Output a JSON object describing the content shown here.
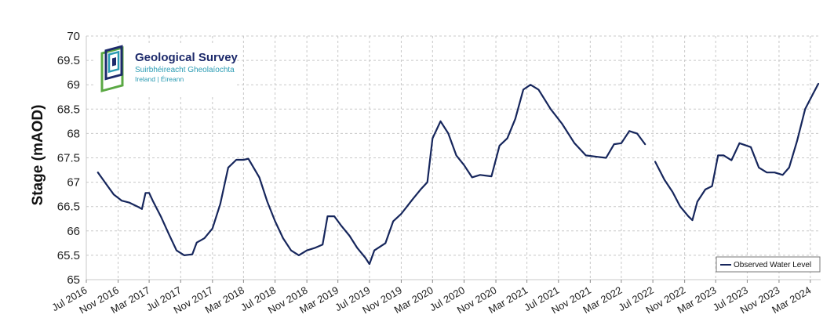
{
  "logo": {
    "title": "Geological Survey",
    "subtitle": "Suirbhéireacht Gheolaíochta",
    "subtitle2": "Ireland | Éireann",
    "colors": {
      "navy": "#1d2a6b",
      "teal": "#2a9bb3",
      "green": "#5aa843"
    }
  },
  "chart_data": {
    "type": "line",
    "title": "",
    "xlabel": "",
    "ylabel": "Stage (mAOD)",
    "ylim": [
      65,
      70
    ],
    "yticks": [
      "65",
      "65.5",
      "66",
      "66.5",
      "67",
      "67.5",
      "68",
      "68.5",
      "69",
      "69.5",
      "70"
    ],
    "xlim": [
      "2016-07-01",
      "2024-04-10"
    ],
    "xticks": [
      {
        "date": "2016-07-01",
        "label": "Jul 2016"
      },
      {
        "date": "2016-11-01",
        "label": "Nov 2016"
      },
      {
        "date": "2017-03-01",
        "label": "Mar 2017"
      },
      {
        "date": "2017-07-01",
        "label": "Jul 2017"
      },
      {
        "date": "2017-11-01",
        "label": "Nov 2017"
      },
      {
        "date": "2018-03-01",
        "label": "Mar 2018"
      },
      {
        "date": "2018-07-01",
        "label": "Jul 2018"
      },
      {
        "date": "2018-11-01",
        "label": "Nov 2018"
      },
      {
        "date": "2019-03-01",
        "label": "Mar 2019"
      },
      {
        "date": "2019-07-01",
        "label": "Jul 2019"
      },
      {
        "date": "2019-11-01",
        "label": "Nov 2019"
      },
      {
        "date": "2020-03-01",
        "label": "Mar 2020"
      },
      {
        "date": "2020-07-01",
        "label": "Jul 2020"
      },
      {
        "date": "2020-11-01",
        "label": "Nov 2020"
      },
      {
        "date": "2021-03-01",
        "label": "Mar 2021"
      },
      {
        "date": "2021-07-01",
        "label": "Jul 2021"
      },
      {
        "date": "2021-11-01",
        "label": "Nov 2021"
      },
      {
        "date": "2022-03-01",
        "label": "Mar 2022"
      },
      {
        "date": "2022-07-01",
        "label": "Jul 2022"
      },
      {
        "date": "2022-11-01",
        "label": "Nov 2022"
      },
      {
        "date": "2023-03-01",
        "label": "Mar 2023"
      },
      {
        "date": "2023-07-01",
        "label": "Jul 2023"
      },
      {
        "date": "2023-11-01",
        "label": "Nov 2023"
      },
      {
        "date": "2024-03-01",
        "label": "Mar 2024"
      }
    ],
    "grid": true,
    "legend_position": "bottom-right",
    "series": [
      {
        "name": "Observed Water Level",
        "color": "#16265c",
        "segments": [
          [
            [
              "2016-08-15",
              67.2
            ],
            [
              "2016-09-15",
              66.97
            ],
            [
              "2016-10-15",
              66.75
            ],
            [
              "2016-11-15",
              66.62
            ],
            [
              "2016-12-15",
              66.58
            ],
            [
              "2017-01-15",
              66.5
            ],
            [
              "2017-02-01",
              66.45
            ],
            [
              "2017-02-15",
              66.78
            ],
            [
              "2017-03-01",
              66.78
            ],
            [
              "2017-03-15",
              66.62
            ],
            [
              "2017-04-15",
              66.3
            ],
            [
              "2017-05-15",
              65.95
            ],
            [
              "2017-06-15",
              65.6
            ],
            [
              "2017-07-15",
              65.5
            ],
            [
              "2017-08-15",
              65.52
            ],
            [
              "2017-09-01",
              65.76
            ],
            [
              "2017-10-01",
              65.85
            ],
            [
              "2017-11-01",
              66.05
            ],
            [
              "2017-12-01",
              66.55
            ],
            [
              "2018-01-01",
              67.3
            ],
            [
              "2018-02-01",
              67.46
            ],
            [
              "2018-03-01",
              67.46
            ],
            [
              "2018-03-20",
              67.48
            ],
            [
              "2018-05-01",
              67.1
            ],
            [
              "2018-06-01",
              66.6
            ],
            [
              "2018-07-01",
              66.2
            ],
            [
              "2018-08-01",
              65.85
            ],
            [
              "2018-09-01",
              65.6
            ],
            [
              "2018-10-01",
              65.5
            ],
            [
              "2018-11-01",
              65.6
            ],
            [
              "2018-12-01",
              65.65
            ],
            [
              "2019-01-01",
              65.72
            ],
            [
              "2019-01-20",
              66.3
            ],
            [
              "2019-02-15",
              66.3
            ],
            [
              "2019-03-15",
              66.1
            ],
            [
              "2019-04-15",
              65.9
            ],
            [
              "2019-05-15",
              65.65
            ],
            [
              "2019-06-15",
              65.45
            ],
            [
              "2019-07-01",
              65.32
            ],
            [
              "2019-07-20",
              65.6
            ],
            [
              "2019-09-01",
              65.75
            ],
            [
              "2019-10-01",
              66.2
            ],
            [
              "2019-11-01",
              66.35
            ],
            [
              "2019-12-15",
              66.65
            ],
            [
              "2020-01-15",
              66.85
            ],
            [
              "2020-02-10",
              67.0
            ],
            [
              "2020-03-01",
              67.9
            ],
            [
              "2020-04-01",
              68.25
            ],
            [
              "2020-05-01",
              68.0
            ],
            [
              "2020-06-01",
              67.55
            ],
            [
              "2020-07-01",
              67.35
            ],
            [
              "2020-08-01",
              67.1
            ],
            [
              "2020-09-01",
              67.15
            ],
            [
              "2020-10-15",
              67.12
            ],
            [
              "2020-11-15",
              67.75
            ],
            [
              "2020-12-15",
              67.9
            ],
            [
              "2021-01-15",
              68.3
            ],
            [
              "2021-02-15",
              68.9
            ],
            [
              "2021-03-15",
              69.0
            ],
            [
              "2021-04-15",
              68.9
            ],
            [
              "2021-06-01",
              68.5
            ],
            [
              "2021-07-15",
              68.2
            ],
            [
              "2021-09-01",
              67.8
            ],
            [
              "2021-10-15",
              67.55
            ],
            [
              "2021-12-01",
              67.52
            ],
            [
              "2022-01-01",
              67.5
            ],
            [
              "2022-02-01",
              67.78
            ],
            [
              "2022-03-01",
              67.8
            ],
            [
              "2022-04-01",
              68.05
            ],
            [
              "2022-05-01",
              68.0
            ],
            [
              "2022-06-01",
              67.78
            ]
          ],
          [
            [
              "2022-07-10",
              67.42
            ],
            [
              "2022-08-15",
              67.05
            ],
            [
              "2022-09-15",
              66.8
            ],
            [
              "2022-10-15",
              66.5
            ],
            [
              "2022-11-15",
              66.3
            ],
            [
              "2022-12-01",
              66.22
            ],
            [
              "2022-12-20",
              66.6
            ],
            [
              "2023-01-20",
              66.85
            ],
            [
              "2023-02-15",
              66.92
            ],
            [
              "2023-03-10",
              67.55
            ],
            [
              "2023-04-01",
              67.55
            ],
            [
              "2023-05-01",
              67.45
            ],
            [
              "2023-06-01",
              67.8
            ],
            [
              "2023-07-15",
              67.72
            ],
            [
              "2023-08-15",
              67.3
            ],
            [
              "2023-09-15",
              67.2
            ],
            [
              "2023-10-15",
              67.2
            ],
            [
              "2023-11-15",
              67.15
            ],
            [
              "2023-12-10",
              67.3
            ],
            [
              "2024-01-10",
              67.85
            ],
            [
              "2024-02-10",
              68.5
            ],
            [
              "2024-03-10",
              68.8
            ],
            [
              "2024-04-01",
              69.02
            ]
          ]
        ]
      }
    ]
  }
}
